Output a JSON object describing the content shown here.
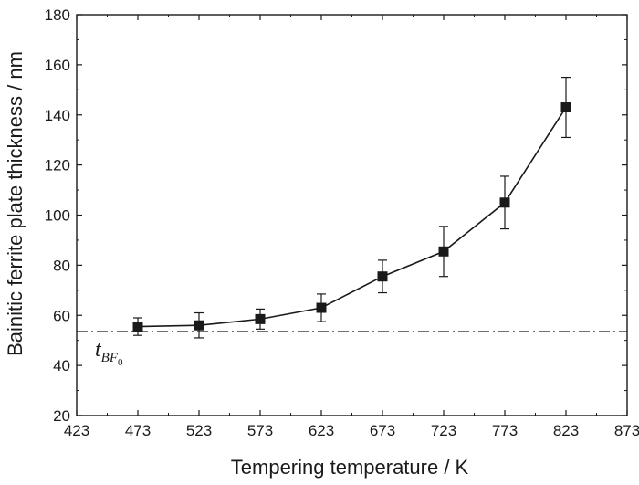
{
  "chart_data": {
    "type": "line",
    "xlabel": "Tempering temperature / K",
    "ylabel": "Bainitic ferrite plate thickness / nm",
    "xlim": [
      423,
      873
    ],
    "ylim": [
      20,
      180
    ],
    "xticks": [
      423,
      473,
      523,
      573,
      623,
      673,
      723,
      773,
      823,
      873
    ],
    "yticks": [
      20,
      40,
      60,
      80,
      100,
      120,
      140,
      160,
      180
    ],
    "grid": false,
    "legend": "none",
    "series": [
      {
        "marker": "square",
        "color": "#1a1a1a",
        "x": [
          473,
          523,
          573,
          623,
          673,
          723,
          773,
          823
        ],
        "y": [
          55.5,
          56,
          58.5,
          63,
          75.5,
          85.5,
          105,
          143
        ],
        "error": [
          3.5,
          5,
          4,
          5.5,
          6.5,
          10,
          10.5,
          12
        ]
      }
    ],
    "reference_line": {
      "y": 53.5,
      "style": "dash-dot",
      "label_main": "t",
      "label_sub": "BF",
      "label_subsub": "0"
    }
  }
}
